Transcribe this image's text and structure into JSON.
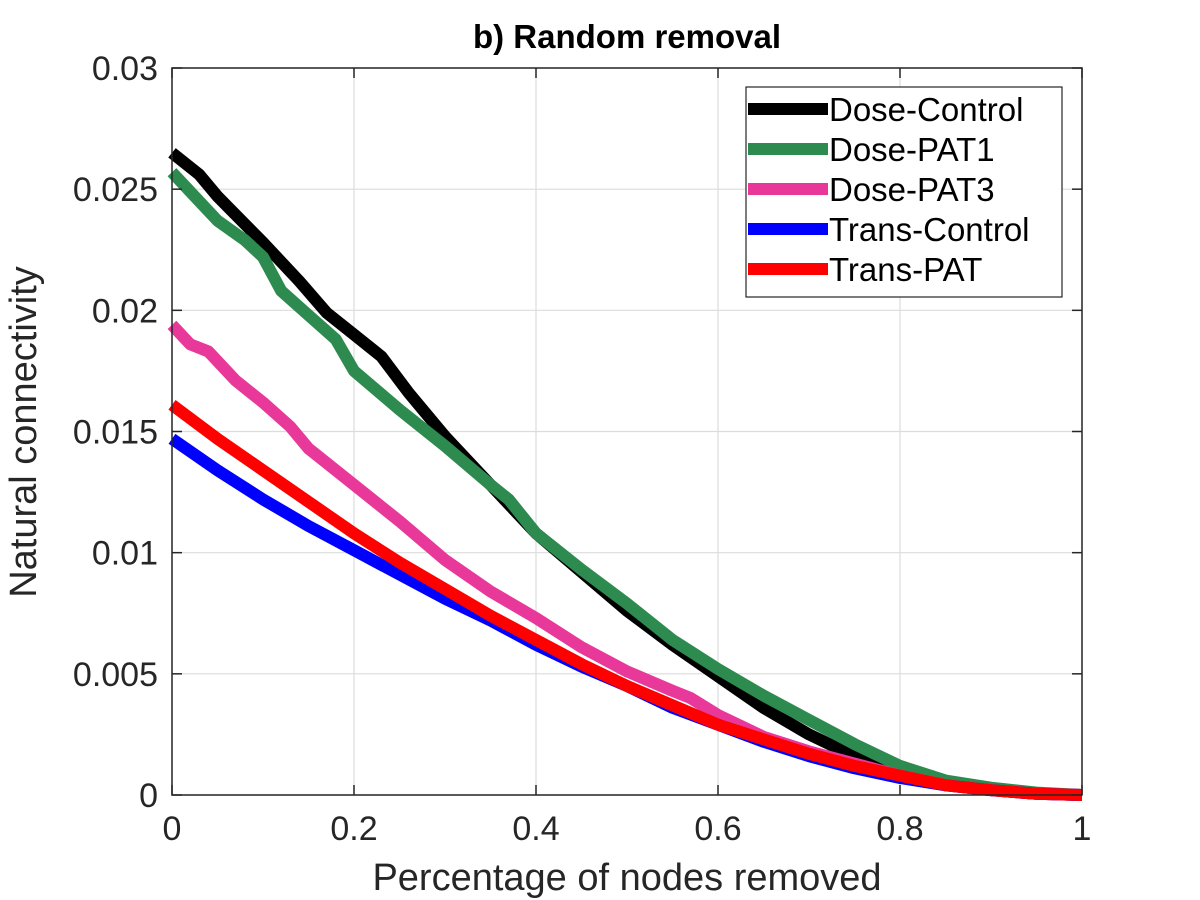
{
  "chart_data": {
    "type": "line",
    "title": "b) Random removal",
    "xlabel": "Percentage of nodes removed",
    "ylabel": "Natural connectivity",
    "xlim": [
      0,
      1
    ],
    "ylim": [
      0,
      0.03
    ],
    "xticks": [
      0,
      0.2,
      0.4,
      0.6,
      0.8,
      1
    ],
    "xtick_labels": [
      "0",
      "0.2",
      "0.4",
      "0.6",
      "0.8",
      "1"
    ],
    "yticks": [
      0,
      0.005,
      0.01,
      0.015,
      0.02,
      0.025,
      0.03
    ],
    "ytick_labels": [
      "0",
      "0.005",
      "0.01",
      "0.015",
      "0.02",
      "0.025",
      "0.03"
    ],
    "grid": true,
    "legend_position": "top-right",
    "series": [
      {
        "name": "Dose-Control",
        "color": "#000000",
        "x": [
          0,
          0.03,
          0.05,
          0.1,
          0.14,
          0.17,
          0.2,
          0.23,
          0.26,
          0.3,
          0.35,
          0.4,
          0.45,
          0.5,
          0.55,
          0.6,
          0.65,
          0.7,
          0.75,
          0.8,
          0.85,
          0.9,
          0.95,
          1.0
        ],
        "y": [
          0.0265,
          0.0256,
          0.0247,
          0.0228,
          0.0212,
          0.0199,
          0.019,
          0.0181,
          0.0166,
          0.0148,
          0.0128,
          0.0108,
          0.0092,
          0.0076,
          0.0062,
          0.0049,
          0.0036,
          0.0025,
          0.0016,
          0.0009,
          0.00045,
          0.0002,
          5e-05,
          0.0
        ]
      },
      {
        "name": "Dose-PAT1",
        "color": "#2e8b4f",
        "x": [
          0,
          0.02,
          0.05,
          0.08,
          0.1,
          0.12,
          0.15,
          0.18,
          0.2,
          0.25,
          0.3,
          0.35,
          0.37,
          0.4,
          0.45,
          0.5,
          0.55,
          0.6,
          0.65,
          0.7,
          0.75,
          0.8,
          0.85,
          0.9,
          0.95,
          1.0
        ],
        "y": [
          0.0257,
          0.0249,
          0.0237,
          0.0229,
          0.0222,
          0.0208,
          0.0198,
          0.0188,
          0.0175,
          0.0159,
          0.0144,
          0.0128,
          0.0122,
          0.0108,
          0.0093,
          0.0079,
          0.0064,
          0.0052,
          0.0041,
          0.0031,
          0.0021,
          0.0012,
          0.0006,
          0.0003,
          0.0001,
          0.0
        ]
      },
      {
        "name": "Dose-PAT3",
        "color": "#e8389a",
        "x": [
          0,
          0.02,
          0.04,
          0.07,
          0.1,
          0.13,
          0.15,
          0.2,
          0.25,
          0.3,
          0.35,
          0.4,
          0.45,
          0.5,
          0.55,
          0.57,
          0.6,
          0.65,
          0.7,
          0.75,
          0.8,
          0.85,
          0.9,
          0.95,
          1.0
        ],
        "y": [
          0.0194,
          0.0186,
          0.0183,
          0.0171,
          0.0162,
          0.0152,
          0.0143,
          0.0128,
          0.0113,
          0.0097,
          0.0084,
          0.0073,
          0.0061,
          0.0051,
          0.0043,
          0.004,
          0.0033,
          0.0024,
          0.0018,
          0.0013,
          0.0008,
          0.0004,
          0.0002,
          5e-05,
          0.0
        ]
      },
      {
        "name": "Trans-Control",
        "color": "#0000ff",
        "x": [
          0,
          0.05,
          0.1,
          0.15,
          0.2,
          0.25,
          0.3,
          0.35,
          0.4,
          0.45,
          0.5,
          0.55,
          0.6,
          0.65,
          0.7,
          0.75,
          0.8,
          0.85,
          0.9,
          0.95,
          1.0
        ],
        "y": [
          0.0147,
          0.0134,
          0.0122,
          0.0111,
          0.0101,
          0.0091,
          0.0081,
          0.0072,
          0.0062,
          0.0053,
          0.0045,
          0.0036,
          0.0029,
          0.0022,
          0.0016,
          0.0011,
          0.0007,
          0.0004,
          0.0002,
          5e-05,
          0.0
        ]
      },
      {
        "name": "Trans-PAT",
        "color": "#ff0000",
        "x": [
          0,
          0.05,
          0.1,
          0.15,
          0.2,
          0.25,
          0.3,
          0.35,
          0.4,
          0.45,
          0.5,
          0.55,
          0.6,
          0.65,
          0.7,
          0.75,
          0.8,
          0.85,
          0.9,
          0.95,
          1.0
        ],
        "y": [
          0.0161,
          0.0147,
          0.0134,
          0.0121,
          0.0108,
          0.0096,
          0.0085,
          0.0074,
          0.0064,
          0.0054,
          0.0045,
          0.0037,
          0.0029,
          0.0023,
          0.0017,
          0.0012,
          0.0008,
          0.0004,
          0.0002,
          5e-05,
          0.0
        ]
      }
    ]
  }
}
